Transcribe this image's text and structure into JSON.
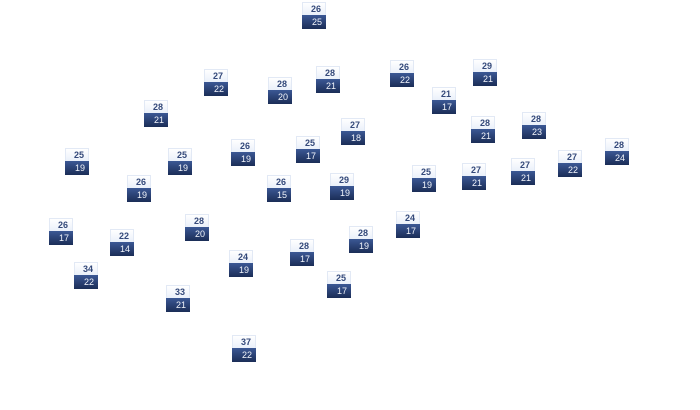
{
  "markers": [
    {
      "high": "26",
      "low": "25"
    },
    {
      "high": "27",
      "low": "22"
    },
    {
      "high": "28",
      "low": "20"
    },
    {
      "high": "28",
      "low": "21"
    },
    {
      "high": "26",
      "low": "22"
    },
    {
      "high": "29",
      "low": "21"
    },
    {
      "high": "28",
      "low": "21"
    },
    {
      "high": "21",
      "low": "17"
    },
    {
      "high": "27",
      "low": "18"
    },
    {
      "high": "28",
      "low": "21"
    },
    {
      "high": "28",
      "low": "23"
    },
    {
      "high": "25",
      "low": "19"
    },
    {
      "high": "25",
      "low": "19"
    },
    {
      "high": "26",
      "low": "19"
    },
    {
      "high": "25",
      "low": "17"
    },
    {
      "high": "28",
      "low": "24"
    },
    {
      "high": "27",
      "low": "22"
    },
    {
      "high": "27",
      "low": "21"
    },
    {
      "high": "27",
      "low": "21"
    },
    {
      "high": "25",
      "low": "19"
    },
    {
      "high": "26",
      "low": "19"
    },
    {
      "high": "26",
      "low": "15"
    },
    {
      "high": "29",
      "low": "19"
    },
    {
      "high": "24",
      "low": "17"
    },
    {
      "high": "26",
      "low": "17"
    },
    {
      "high": "22",
      "low": "14"
    },
    {
      "high": "28",
      "low": "20"
    },
    {
      "high": "28",
      "low": "19"
    },
    {
      "high": "28",
      "low": "17"
    },
    {
      "high": "24",
      "low": "19"
    },
    {
      "high": "34",
      "low": "22"
    },
    {
      "high": "25",
      "low": "17"
    },
    {
      "high": "33",
      "low": "21"
    },
    {
      "high": "37",
      "low": "22"
    }
  ],
  "colors": {
    "marker_dark": "#1b2d57",
    "marker_text_high": "#34497a"
  }
}
